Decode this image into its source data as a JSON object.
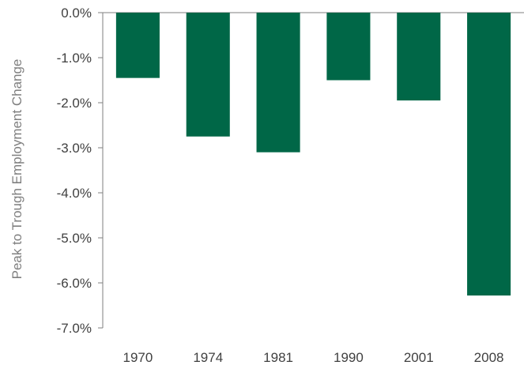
{
  "chart_data": {
    "type": "bar",
    "title": "",
    "xlabel": "",
    "ylabel": "Peak to Trough Employment Change",
    "categories": [
      "1970",
      "1974",
      "1981",
      "1990",
      "2001",
      "2008"
    ],
    "values": [
      -1.45,
      -2.75,
      -3.1,
      -1.5,
      -1.95,
      -6.28
    ],
    "ylim": [
      -7.0,
      0.0
    ],
    "yticks": [
      0,
      -1,
      -2,
      -3,
      -4,
      -5,
      -6,
      -7
    ],
    "ytick_labels": [
      "0.0%",
      "-1.0%",
      "-2.0%",
      "-3.0%",
      "-4.0%",
      "-5.0%",
      "-6.0%",
      "-7.0%"
    ],
    "grid": false,
    "legend": "none",
    "colors": {
      "bar": "#006747",
      "axis": "#7f7f7f",
      "text": "#404040"
    }
  }
}
